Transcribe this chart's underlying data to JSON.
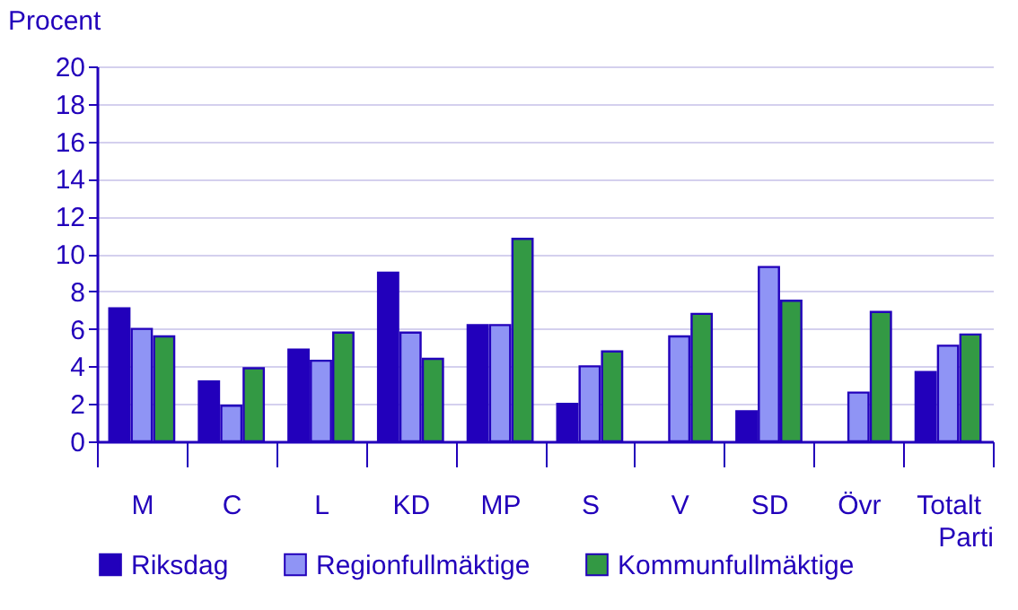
{
  "chart_data": {
    "type": "bar",
    "ylabel": "Procent",
    "xlabel": "Parti",
    "categories": [
      "M",
      "C",
      "L",
      "KD",
      "MP",
      "S",
      "V",
      "SD",
      "Övr",
      "Totalt"
    ],
    "series": [
      {
        "name": "Riksdag",
        "color": "#2200bb",
        "values": [
          7.1,
          3.2,
          4.9,
          9.0,
          6.2,
          2.0,
          null,
          1.6,
          null,
          3.7
        ]
      },
      {
        "name": "Regionfullmäktige",
        "color": "#8f94f5",
        "values": [
          6.0,
          1.9,
          4.3,
          5.8,
          6.2,
          4.0,
          5.6,
          9.3,
          2.6,
          5.1
        ]
      },
      {
        "name": "Kommunfullmäktige",
        "color": "#339944",
        "values": [
          5.6,
          3.9,
          5.8,
          4.4,
          10.8,
          4.8,
          6.8,
          7.5,
          6.9,
          5.7
        ]
      }
    ],
    "ylim": [
      0,
      20
    ],
    "yticks": [
      0,
      2,
      4,
      6,
      8,
      10,
      12,
      14,
      16,
      18,
      20
    ],
    "grid": "y",
    "legend": "bottom"
  }
}
